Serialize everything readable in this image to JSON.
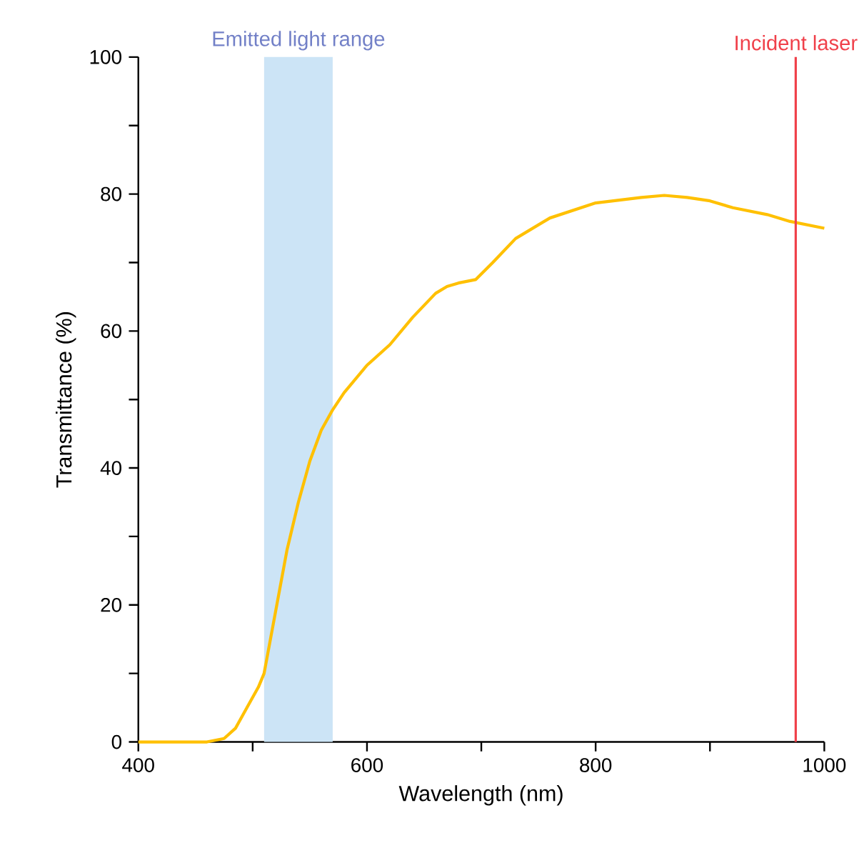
{
  "chart_data": {
    "type": "line",
    "xlabel": "Wavelength (nm)",
    "ylabel": "Transmittance (%)",
    "xlim": [
      400,
      1000
    ],
    "ylim": [
      0,
      100
    ],
    "xticks": [
      400,
      {
        "value": 500,
        "label": null
      },
      600,
      {
        "value": 700,
        "label": null
      },
      800,
      {
        "value": 900,
        "label": null
      },
      1000
    ],
    "yticks": [
      0,
      {
        "value": 10,
        "label": null
      },
      20,
      {
        "value": 30,
        "label": null
      },
      40,
      {
        "value": 50,
        "label": null
      },
      60,
      {
        "value": 70,
        "label": null
      },
      80,
      {
        "value": 90,
        "label": null
      },
      100
    ],
    "series": [
      {
        "color": "#ffc000",
        "x": [
          400,
          460,
          475,
          485,
          495,
          505,
          510,
          520,
          530,
          540,
          550,
          560,
          570,
          580,
          600,
          620,
          640,
          660,
          670,
          680,
          695,
          710,
          730,
          760,
          800,
          840,
          860,
          880,
          900,
          920,
          950,
          970,
          1000
        ],
        "values": [
          0,
          0,
          0.5,
          2,
          5,
          8,
          10,
          19,
          28,
          35,
          41,
          45.5,
          48.5,
          51,
          55,
          58,
          62,
          65.5,
          66.5,
          67,
          67.5,
          70,
          73.5,
          76.5,
          78.7,
          79.5,
          79.8,
          79.5,
          79,
          78,
          77,
          76,
          75
        ]
      }
    ],
    "bands": [
      {
        "axis": "x",
        "from": 510,
        "to": 570,
        "label": "Emitted light range",
        "color": "#cce4f6"
      }
    ],
    "ref_lines": [
      {
        "axis": "x",
        "value": 975,
        "label": "Incident laser",
        "color": "#f0404a"
      }
    ]
  }
}
